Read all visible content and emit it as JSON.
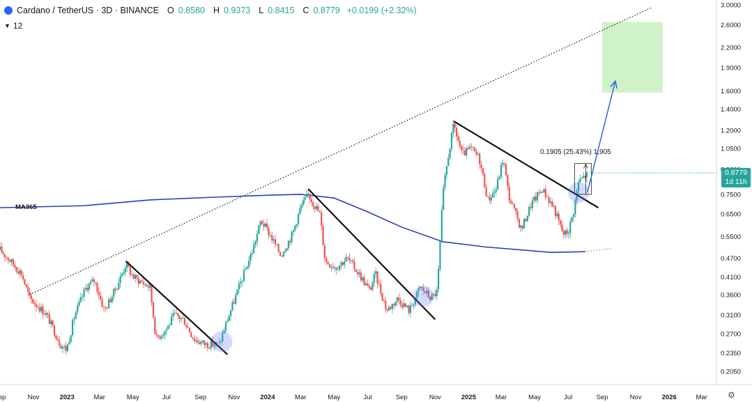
{
  "header": {
    "symbol": "Cardano / TetherUS · 3D · BINANCE",
    "open_label": "O",
    "open": "0.8580",
    "high_label": "H",
    "high": "0.9373",
    "low_label": "L",
    "low": "0.8415",
    "close_label": "C",
    "close": "0.8779",
    "change": "+0.0199 (+2.32%)"
  },
  "indicator_row": {
    "collapse_icon": "chevron-down-icon",
    "count": "12"
  },
  "price_tag": {
    "price": "0.8779",
    "countdown": "1d 11h"
  },
  "ma_label": "MA365",
  "measure_label": "0.1905 (25.43%) 1,905",
  "colors": {
    "up": "#26a69a",
    "down": "#ef5350",
    "ma": "#2a3eb1",
    "target": "#c8f0c0",
    "arrow": "#3b6fd8"
  },
  "chart_data": {
    "type": "candlestick",
    "title": "Cardano / TetherUS · 3D · BINANCE",
    "y_scale": "log",
    "ylim": [
      0.19,
      3.05
    ],
    "xlim": [
      "2022-09-01",
      "2026-03-28"
    ],
    "y_ticks": [
      "3.0000",
      "2.6000",
      "2.2000",
      "1.9000",
      "1.6000",
      "1.4000",
      "1.2000",
      "1.0500",
      "0.9000",
      "0.7500",
      "0.6500",
      "0.5500",
      "0.4700",
      "0.4100",
      "0.3600",
      "0.3100",
      "0.2700",
      "0.2350",
      "0.2050"
    ],
    "x_ticks": [
      {
        "label": "Sep",
        "date": "2022-09-01"
      },
      {
        "label": "Nov",
        "date": "2022-11-01"
      },
      {
        "label": "2023",
        "date": "2023-01-01"
      },
      {
        "label": "Mar",
        "date": "2023-03-01"
      },
      {
        "label": "May",
        "date": "2023-05-01"
      },
      {
        "label": "Jul",
        "date": "2023-07-01"
      },
      {
        "label": "Sep",
        "date": "2023-09-01"
      },
      {
        "label": "Nov",
        "date": "2023-11-01"
      },
      {
        "label": "2024",
        "date": "2024-01-01"
      },
      {
        "label": "Mar",
        "date": "2024-03-01"
      },
      {
        "label": "May",
        "date": "2024-05-01"
      },
      {
        "label": "Jul",
        "date": "2024-07-01"
      },
      {
        "label": "Sep",
        "date": "2024-09-01"
      },
      {
        "label": "Nov",
        "date": "2024-11-01"
      },
      {
        "label": "2025",
        "date": "2025-01-01"
      },
      {
        "label": "Mar",
        "date": "2025-03-01"
      },
      {
        "label": "May",
        "date": "2025-05-01"
      },
      {
        "label": "Jul",
        "date": "2025-07-01"
      },
      {
        "label": "Sep",
        "date": "2025-09-01"
      },
      {
        "label": "Nov",
        "date": "2025-11-01"
      },
      {
        "label": "2026",
        "date": "2026-01-01"
      },
      {
        "label": "Mar",
        "date": "2026-03-01"
      }
    ],
    "price_path": [
      [
        "2022-09-01",
        0.5
      ],
      [
        "2022-09-20",
        0.46
      ],
      [
        "2022-10-10",
        0.42
      ],
      [
        "2022-10-25",
        0.35
      ],
      [
        "2022-11-10",
        0.33
      ],
      [
        "2022-11-25",
        0.31
      ],
      [
        "2022-12-20",
        0.25
      ],
      [
        "2022-12-31",
        0.24
      ],
      [
        "2023-01-15",
        0.31
      ],
      [
        "2023-02-05",
        0.38
      ],
      [
        "2023-02-20",
        0.4
      ],
      [
        "2023-03-10",
        0.32
      ],
      [
        "2023-04-01",
        0.38
      ],
      [
        "2023-04-18",
        0.45
      ],
      [
        "2023-05-01",
        0.41
      ],
      [
        "2023-06-01",
        0.38
      ],
      [
        "2023-06-12",
        0.26
      ],
      [
        "2023-07-01",
        0.28
      ],
      [
        "2023-07-15",
        0.31
      ],
      [
        "2023-08-01",
        0.3
      ],
      [
        "2023-08-20",
        0.26
      ],
      [
        "2023-09-10",
        0.25
      ],
      [
        "2023-10-05",
        0.25
      ],
      [
        "2023-10-20",
        0.3
      ],
      [
        "2023-11-10",
        0.38
      ],
      [
        "2023-12-05",
        0.5
      ],
      [
        "2023-12-20",
        0.62
      ],
      [
        "2024-01-05",
        0.56
      ],
      [
        "2024-01-25",
        0.48
      ],
      [
        "2024-02-15",
        0.56
      ],
      [
        "2024-03-01",
        0.68
      ],
      [
        "2024-03-15",
        0.75
      ],
      [
        "2024-04-05",
        0.65
      ],
      [
        "2024-04-15",
        0.46
      ],
      [
        "2024-05-05",
        0.44
      ],
      [
        "2024-05-25",
        0.47
      ],
      [
        "2024-06-15",
        0.42
      ],
      [
        "2024-07-05",
        0.37
      ],
      [
        "2024-07-15",
        0.42
      ],
      [
        "2024-08-05",
        0.32
      ],
      [
        "2024-08-25",
        0.35
      ],
      [
        "2024-09-15",
        0.32
      ],
      [
        "2024-10-05",
        0.38
      ],
      [
        "2024-10-25",
        0.35
      ],
      [
        "2024-11-05",
        0.37
      ],
      [
        "2024-11-15",
        0.75
      ],
      [
        "2024-11-25",
        1.0
      ],
      [
        "2024-12-05",
        1.25
      ],
      [
        "2024-12-20",
        1.0
      ],
      [
        "2025-01-05",
        1.05
      ],
      [
        "2025-01-20",
        0.98
      ],
      [
        "2025-02-05",
        0.72
      ],
      [
        "2025-02-20",
        0.78
      ],
      [
        "2025-03-05",
        0.98
      ],
      [
        "2025-03-15",
        0.74
      ],
      [
        "2025-04-07",
        0.58
      ],
      [
        "2025-04-25",
        0.7
      ],
      [
        "2025-05-15",
        0.78
      ],
      [
        "2025-06-05",
        0.68
      ],
      [
        "2025-06-22",
        0.56
      ],
      [
        "2025-07-01",
        0.57
      ],
      [
        "2025-07-10",
        0.65
      ],
      [
        "2025-07-20",
        0.82
      ],
      [
        "2025-08-05",
        0.8779
      ]
    ],
    "ma365": [
      [
        "2022-09-01",
        0.68
      ],
      [
        "2023-02-01",
        0.69
      ],
      [
        "2023-06-01",
        0.72
      ],
      [
        "2023-10-01",
        0.735
      ],
      [
        "2024-01-01",
        0.745
      ],
      [
        "2024-03-01",
        0.75
      ],
      [
        "2024-05-01",
        0.73
      ],
      [
        "2024-07-01",
        0.66
      ],
      [
        "2024-09-01",
        0.59
      ],
      [
        "2024-11-15",
        0.53
      ],
      [
        "2025-02-01",
        0.51
      ],
      [
        "2025-06-01",
        0.49
      ],
      [
        "2025-08-01",
        0.493
      ]
    ],
    "ma365_projection": [
      [
        "2025-08-01",
        0.493
      ],
      [
        "2025-09-20",
        0.505
      ]
    ],
    "trendline_upper": [
      [
        "2022-10-25",
        0.36
      ],
      [
        "2025-12-01",
        2.95
      ]
    ],
    "trendline_upper_label": null,
    "downtrend_lines": [
      [
        [
          "2023-04-18",
          0.46
        ],
        [
          "2023-10-20",
          0.232
        ]
      ],
      [
        [
          "2024-03-15",
          0.78
        ],
        [
          "2024-11-01",
          0.3
        ]
      ],
      [
        [
          "2024-12-05",
          1.28
        ],
        [
          "2025-08-25",
          0.68
        ]
      ]
    ],
    "breakout_circles": [
      [
        "2023-10-10",
        0.255
      ],
      [
        "2024-10-10",
        0.355
      ],
      [
        "2025-07-20",
        0.76
      ]
    ],
    "measure": {
      "from": [
        "2025-07-28",
        0.75
      ],
      "to": [
        "2025-07-28",
        0.94
      ]
    },
    "projection_arrow": [
      [
        "2025-08-05",
        0.76
      ],
      [
        "2025-09-25",
        1.72
      ]
    ],
    "target_zone": {
      "x": [
        "2025-09-01",
        "2025-12-20"
      ],
      "y": [
        1.58,
        2.65
      ]
    }
  }
}
